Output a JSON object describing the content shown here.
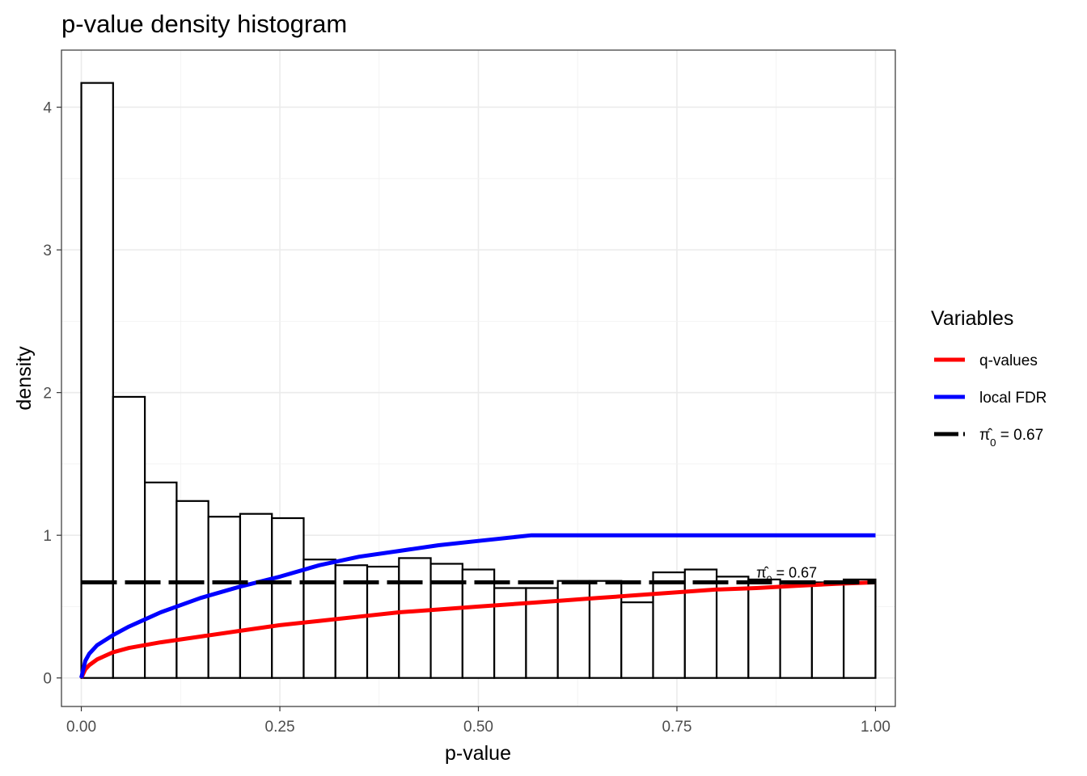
{
  "chart_data": {
    "type": "bar",
    "title": "p-value density histogram",
    "xlabel": "p-value",
    "ylabel": "density",
    "xlim": [
      -0.025,
      1.025
    ],
    "ylim": [
      -0.2,
      4.4
    ],
    "x_ticks": [
      "0.00",
      "0.25",
      "0.50",
      "0.75",
      "1.00"
    ],
    "x_tick_values": [
      0,
      0.25,
      0.5,
      0.75,
      1.0
    ],
    "y_ticks": [
      "0",
      "1",
      "2",
      "3",
      "4"
    ],
    "y_tick_values": [
      0,
      1,
      2,
      3,
      4
    ],
    "grid": true,
    "histogram": {
      "bin_width": 0.04,
      "bins": [
        {
          "x0": 0.0,
          "x1": 0.04,
          "density": 4.17
        },
        {
          "x0": 0.04,
          "x1": 0.08,
          "density": 1.97
        },
        {
          "x0": 0.08,
          "x1": 0.12,
          "density": 1.37
        },
        {
          "x0": 0.12,
          "x1": 0.16,
          "density": 1.24
        },
        {
          "x0": 0.16,
          "x1": 0.2,
          "density": 1.13
        },
        {
          "x0": 0.2,
          "x1": 0.24,
          "density": 1.15
        },
        {
          "x0": 0.24,
          "x1": 0.28,
          "density": 1.12
        },
        {
          "x0": 0.28,
          "x1": 0.32,
          "density": 0.83
        },
        {
          "x0": 0.32,
          "x1": 0.36,
          "density": 0.79
        },
        {
          "x0": 0.36,
          "x1": 0.4,
          "density": 0.78
        },
        {
          "x0": 0.4,
          "x1": 0.44,
          "density": 0.84
        },
        {
          "x0": 0.44,
          "x1": 0.48,
          "density": 0.8
        },
        {
          "x0": 0.48,
          "x1": 0.52,
          "density": 0.76
        },
        {
          "x0": 0.52,
          "x1": 0.56,
          "density": 0.63
        },
        {
          "x0": 0.56,
          "x1": 0.6,
          "density": 0.63
        },
        {
          "x0": 0.6,
          "x1": 0.64,
          "density": 0.68
        },
        {
          "x0": 0.64,
          "x1": 0.68,
          "density": 0.68
        },
        {
          "x0": 0.68,
          "x1": 0.72,
          "density": 0.53
        },
        {
          "x0": 0.72,
          "x1": 0.76,
          "density": 0.74
        },
        {
          "x0": 0.76,
          "x1": 0.8,
          "density": 0.76
        },
        {
          "x0": 0.8,
          "x1": 0.84,
          "density": 0.71
        },
        {
          "x0": 0.84,
          "x1": 0.88,
          "density": 0.69
        },
        {
          "x0": 0.88,
          "x1": 0.92,
          "density": 0.67
        },
        {
          "x0": 0.92,
          "x1": 0.96,
          "density": 0.67
        },
        {
          "x0": 0.96,
          "x1": 1.0,
          "density": 0.69
        }
      ]
    },
    "series": [
      {
        "name": "q-values",
        "color": "#ff0000",
        "style": "solid",
        "x": [
          0,
          0.005,
          0.01,
          0.02,
          0.04,
          0.06,
          0.08,
          0.1,
          0.15,
          0.2,
          0.25,
          0.3,
          0.35,
          0.4,
          0.45,
          0.5,
          0.55,
          0.6,
          0.65,
          0.7,
          0.75,
          0.8,
          0.85,
          0.9,
          0.95,
          1.0
        ],
        "y": [
          0,
          0.06,
          0.09,
          0.13,
          0.18,
          0.21,
          0.23,
          0.25,
          0.29,
          0.33,
          0.37,
          0.4,
          0.43,
          0.46,
          0.48,
          0.5,
          0.52,
          0.54,
          0.56,
          0.58,
          0.6,
          0.62,
          0.63,
          0.645,
          0.66,
          0.67
        ]
      },
      {
        "name": "local FDR",
        "color": "#0000ff",
        "style": "solid",
        "x": [
          0,
          0.005,
          0.01,
          0.02,
          0.04,
          0.06,
          0.08,
          0.1,
          0.15,
          0.2,
          0.25,
          0.3,
          0.35,
          0.4,
          0.45,
          0.5,
          0.567,
          0.6,
          0.7,
          0.8,
          0.9,
          1.0
        ],
        "y": [
          0,
          0.12,
          0.17,
          0.23,
          0.3,
          0.36,
          0.41,
          0.46,
          0.56,
          0.64,
          0.71,
          0.79,
          0.85,
          0.89,
          0.93,
          0.96,
          1.0,
          1.0,
          1.0,
          1.0,
          1.0,
          1.0
        ]
      },
      {
        "name": "π̂0 = 0.67",
        "color": "#000000",
        "style": "dashed",
        "x": [
          0,
          1.0
        ],
        "y": [
          0.67,
          0.67
        ]
      }
    ],
    "legend": {
      "title": "Variables",
      "position": "right",
      "entries": [
        {
          "label": "q-values",
          "color": "#ff0000",
          "style": "solid"
        },
        {
          "label": "local FDR",
          "color": "#0000ff",
          "style": "solid"
        },
        {
          "label_hat": "π",
          "label_sub": "0",
          "label_rest": " = 0.67",
          "color": "#000000",
          "style": "dashed"
        }
      ]
    },
    "annotations": [
      {
        "x": 0.85,
        "y": 0.67,
        "label_hat": "π",
        "label_sub": "0",
        "label_rest": " = 0.67"
      }
    ]
  }
}
